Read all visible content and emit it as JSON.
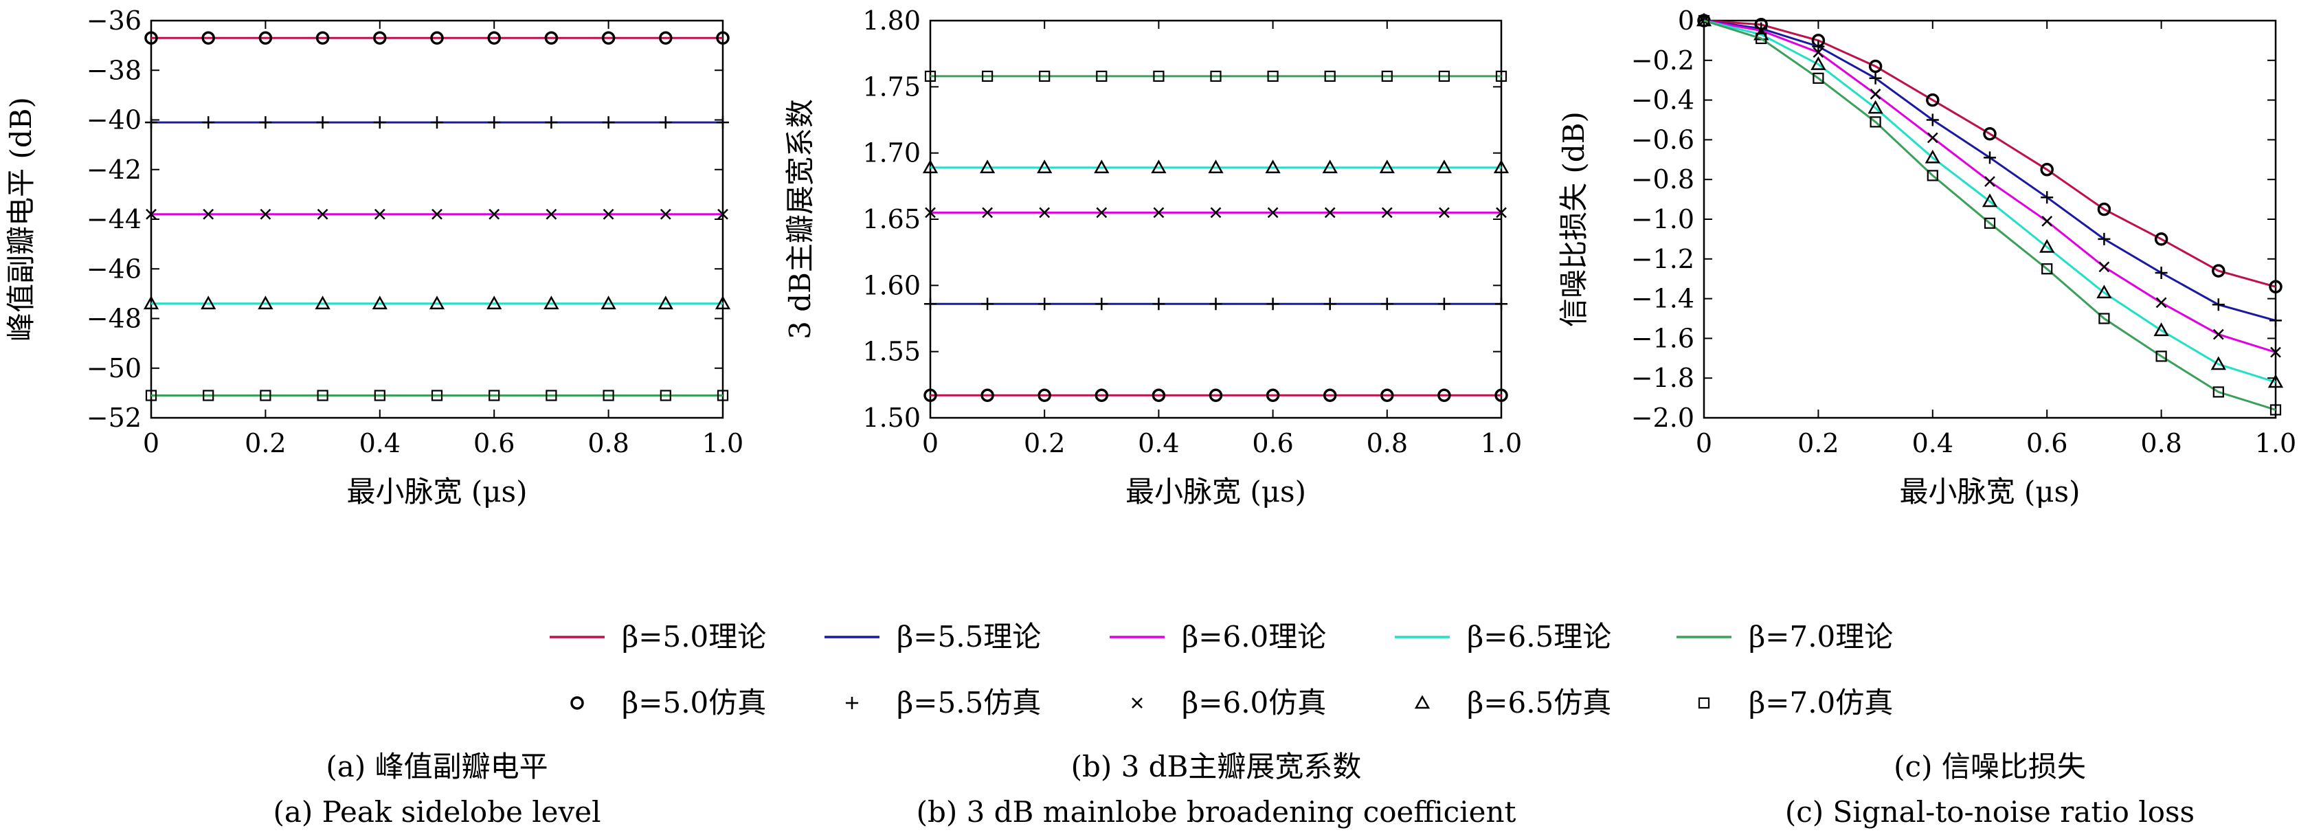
{
  "legend": {
    "theory_suffix": "理论",
    "sim_suffix": "仿真",
    "symbol": "β",
    "entries": [
      {
        "beta": "5.0",
        "color": "#c0104a",
        "marker": "circle"
      },
      {
        "beta": "5.5",
        "color": "#1a1aa0",
        "marker": "plus"
      },
      {
        "beta": "6.0",
        "color": "#e000e0",
        "marker": "cross"
      },
      {
        "beta": "6.5",
        "color": "#20e0c8",
        "marker": "triangle"
      },
      {
        "beta": "7.0",
        "color": "#3aa05a",
        "marker": "square"
      }
    ]
  },
  "chart_data": [
    {
      "type": "line",
      "caption_cn": "(a) 峰值副瓣电平",
      "caption_en": "(a) Peak sidelobe level",
      "xlabel": "最小脉宽 (μs)",
      "ylabel": "峰值副瓣电平 (dB)",
      "xlim": [
        0,
        1.0
      ],
      "ylim": [
        -52,
        -36
      ],
      "xticks": [
        "0",
        "0.2",
        "0.4",
        "0.6",
        "0.8",
        "1.0"
      ],
      "yticks": [
        "−36",
        "−38",
        "−40",
        "−42",
        "−44",
        "−46",
        "−48",
        "−50",
        "−52"
      ],
      "x": [
        0,
        0.1,
        0.2,
        0.3,
        0.4,
        0.5,
        0.6,
        0.7,
        0.8,
        0.9,
        1.0
      ],
      "series": [
        {
          "values": [
            -36.7,
            -36.7,
            -36.7,
            -36.7,
            -36.7,
            -36.7,
            -36.7,
            -36.7,
            -36.7,
            -36.7,
            -36.7
          ]
        },
        {
          "values": [
            -40.1,
            -40.1,
            -40.1,
            -40.1,
            -40.1,
            -40.1,
            -40.1,
            -40.1,
            -40.1,
            -40.1,
            -40.1
          ]
        },
        {
          "values": [
            -43.8,
            -43.8,
            -43.8,
            -43.8,
            -43.8,
            -43.8,
            -43.8,
            -43.8,
            -43.8,
            -43.8,
            -43.8
          ]
        },
        {
          "values": [
            -47.4,
            -47.4,
            -47.4,
            -47.4,
            -47.4,
            -47.4,
            -47.4,
            -47.4,
            -47.4,
            -47.4,
            -47.4
          ]
        },
        {
          "values": [
            -51.1,
            -51.1,
            -51.1,
            -51.1,
            -51.1,
            -51.1,
            -51.1,
            -51.1,
            -51.1,
            -51.1,
            -51.1
          ]
        }
      ]
    },
    {
      "type": "line",
      "caption_cn": "(b) 3 dB主瓣展宽系数",
      "caption_en": "(b) 3 dB mainlobe broadening coefficient",
      "xlabel": "最小脉宽 (μs)",
      "ylabel": "3 dB主瓣展宽系数",
      "xlim": [
        0,
        1.0
      ],
      "ylim": [
        1.5,
        1.8
      ],
      "xticks": [
        "0",
        "0.2",
        "0.4",
        "0.6",
        "0.8",
        "1.0"
      ],
      "yticks": [
        "1.80",
        "1.75",
        "1.70",
        "1.65",
        "1.60",
        "1.55",
        "1.50"
      ],
      "x": [
        0,
        0.1,
        0.2,
        0.3,
        0.4,
        0.5,
        0.6,
        0.7,
        0.8,
        0.9,
        1.0
      ],
      "series": [
        {
          "values": [
            1.517,
            1.517,
            1.517,
            1.517,
            1.517,
            1.517,
            1.517,
            1.517,
            1.517,
            1.517,
            1.517
          ]
        },
        {
          "values": [
            1.586,
            1.586,
            1.586,
            1.586,
            1.586,
            1.586,
            1.586,
            1.586,
            1.586,
            1.586,
            1.586
          ]
        },
        {
          "values": [
            1.655,
            1.655,
            1.655,
            1.655,
            1.655,
            1.655,
            1.655,
            1.655,
            1.655,
            1.655,
            1.655
          ]
        },
        {
          "values": [
            1.689,
            1.689,
            1.689,
            1.689,
            1.689,
            1.689,
            1.689,
            1.689,
            1.689,
            1.689,
            1.689
          ]
        },
        {
          "values": [
            1.758,
            1.758,
            1.758,
            1.758,
            1.758,
            1.758,
            1.758,
            1.758,
            1.758,
            1.758,
            1.758
          ]
        }
      ]
    },
    {
      "type": "line",
      "caption_cn": "(c) 信噪比损失",
      "caption_en": "(c) Signal-to-noise ratio loss",
      "xlabel": "最小脉宽 (μs)",
      "ylabel": "信噪比损失 (dB)",
      "xlim": [
        0,
        1.0
      ],
      "ylim": [
        -2.0,
        0
      ],
      "xticks": [
        "0",
        "0.2",
        "0.4",
        "0.6",
        "0.8",
        "1.0"
      ],
      "yticks": [
        "0",
        "−0.2",
        "−0.4",
        "−0.6",
        "−0.8",
        "−1.0",
        "−1.2",
        "−1.4",
        "−1.6",
        "−1.8",
        "−2.0"
      ],
      "x": [
        0,
        0.1,
        0.2,
        0.3,
        0.4,
        0.5,
        0.6,
        0.7,
        0.8,
        0.9,
        1.0
      ],
      "series": [
        {
          "values": [
            0,
            -0.02,
            -0.1,
            -0.23,
            -0.4,
            -0.57,
            -0.75,
            -0.95,
            -1.1,
            -1.26,
            -1.34
          ]
        },
        {
          "values": [
            0,
            -0.04,
            -0.13,
            -0.29,
            -0.5,
            -0.69,
            -0.89,
            -1.1,
            -1.27,
            -1.43,
            -1.51
          ]
        },
        {
          "values": [
            0,
            -0.05,
            -0.16,
            -0.37,
            -0.59,
            -0.81,
            -1.01,
            -1.24,
            -1.42,
            -1.58,
            -1.67
          ]
        },
        {
          "values": [
            0,
            -0.07,
            -0.22,
            -0.44,
            -0.69,
            -0.91,
            -1.14,
            -1.37,
            -1.56,
            -1.73,
            -1.82
          ]
        },
        {
          "values": [
            0,
            -0.09,
            -0.29,
            -0.51,
            -0.78,
            -1.02,
            -1.25,
            -1.5,
            -1.69,
            -1.87,
            -1.96
          ]
        }
      ]
    }
  ]
}
